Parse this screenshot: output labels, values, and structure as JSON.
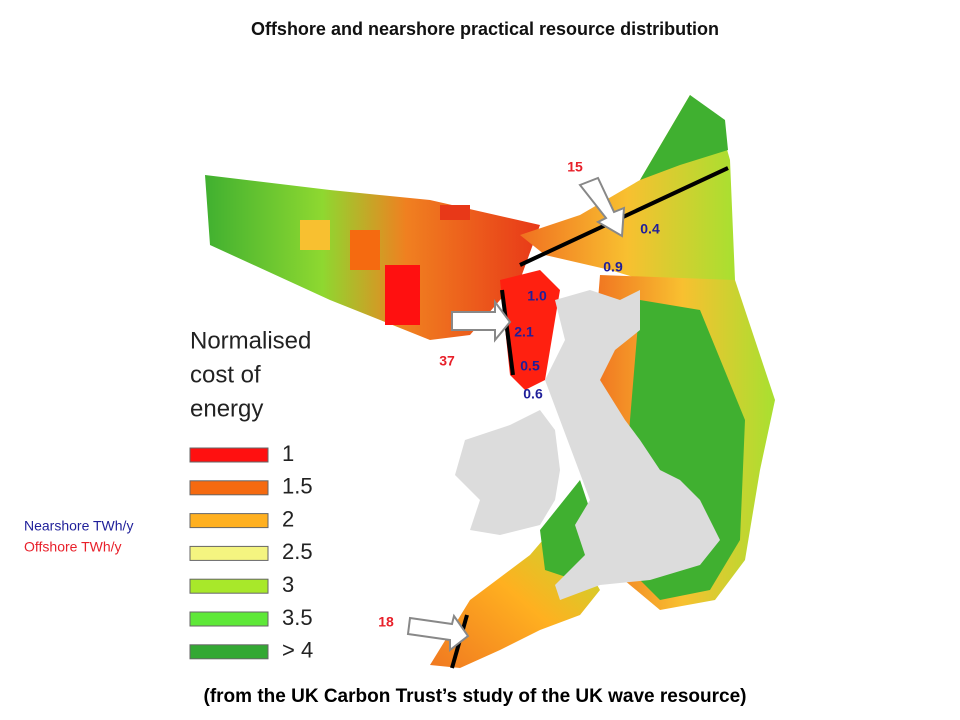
{
  "title": "Offshore and nearshore practical resource distribution",
  "legend": {
    "title_lines": [
      "Normalised",
      "cost of",
      "energy"
    ],
    "items": [
      {
        "label": "1",
        "color": "#ff1010"
      },
      {
        "label": "1.5",
        "color": "#f56a10"
      },
      {
        "label": "2",
        "color": "#ffb020"
      },
      {
        "label": "2.5",
        "color": "#f4f480"
      },
      {
        "label": "3",
        "color": "#a8e82a"
      },
      {
        "label": "3.5",
        "color": "#5ee838"
      },
      {
        "label": "> 4",
        "color": "#33a833"
      }
    ]
  },
  "key": {
    "nearshore": {
      "text": "Nearshore TWh/y",
      "color": "#1f1f9a"
    },
    "offshore": {
      "text": "Offshore TWh/y",
      "color": "#e8202a"
    }
  },
  "annotations": {
    "nearshore": [
      "0.4",
      "0.9",
      "1.0",
      "2.1",
      "0.5",
      "0.6"
    ],
    "offshore": [
      "15",
      "37",
      "18"
    ]
  },
  "caption": "(from the UK Carbon Trust’s study of the UK wave resource)"
}
